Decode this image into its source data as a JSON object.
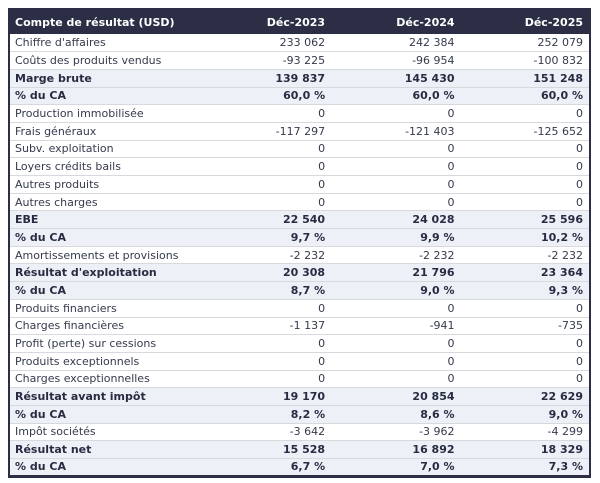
{
  "colors": {
    "header_bg": "#2b2e44",
    "header_text": "#ffffff",
    "subtotal_row_bg": "#edf0f7",
    "grid_line": "#d7d9dc",
    "outer_border": "#2b2e44",
    "body_text": "#353a4d"
  },
  "chart_data": {
    "type": "table",
    "title": "Compte de résultat (USD)",
    "columns": [
      "Déc-2023",
      "Déc-2024",
      "Déc-2025"
    ],
    "rows": [
      {
        "label": "Chiffre d'affaires",
        "values": [
          "233 062",
          "242 384",
          "252 079"
        ],
        "style": "normal"
      },
      {
        "label": "Coûts des produits vendus",
        "values": [
          "-93 225",
          "-96 954",
          "-100 832"
        ],
        "style": "normal"
      },
      {
        "label": "Marge brute",
        "values": [
          "139 837",
          "145 430",
          "151 248"
        ],
        "style": "subtotal"
      },
      {
        "label": "% du CA",
        "values": [
          "60,0 %",
          "60,0 %",
          "60,0 %"
        ],
        "style": "subtotal"
      },
      {
        "label": "Production immobilisée",
        "values": [
          "0",
          "0",
          "0"
        ],
        "style": "normal"
      },
      {
        "label": "Frais généraux",
        "values": [
          "-117 297",
          "-121 403",
          "-125 652"
        ],
        "style": "normal"
      },
      {
        "label": "Subv. exploitation",
        "values": [
          "0",
          "0",
          "0"
        ],
        "style": "normal"
      },
      {
        "label": "Loyers crédits bails",
        "values": [
          "0",
          "0",
          "0"
        ],
        "style": "normal"
      },
      {
        "label": "Autres produits",
        "values": [
          "0",
          "0",
          "0"
        ],
        "style": "normal"
      },
      {
        "label": "Autres charges",
        "values": [
          "0",
          "0",
          "0"
        ],
        "style": "normal"
      },
      {
        "label": "EBE",
        "values": [
          "22 540",
          "24 028",
          "25 596"
        ],
        "style": "subtotal"
      },
      {
        "label": "% du CA",
        "values": [
          "9,7 %",
          "9,9 %",
          "10,2 %"
        ],
        "style": "subtotal"
      },
      {
        "label": "Amortissements et provisions",
        "values": [
          "-2 232",
          "-2 232",
          "-2 232"
        ],
        "style": "normal"
      },
      {
        "label": "Résultat d'exploitation",
        "values": [
          "20 308",
          "21 796",
          "23 364"
        ],
        "style": "subtotal"
      },
      {
        "label": "% du CA",
        "values": [
          "8,7 %",
          "9,0 %",
          "9,3 %"
        ],
        "style": "subtotal"
      },
      {
        "label": "Produits financiers",
        "values": [
          "0",
          "0",
          "0"
        ],
        "style": "normal"
      },
      {
        "label": "Charges financières",
        "values": [
          "-1 137",
          "-941",
          "-735"
        ],
        "style": "normal"
      },
      {
        "label": "Profit (perte) sur cessions",
        "values": [
          "0",
          "0",
          "0"
        ],
        "style": "normal"
      },
      {
        "label": "Produits exceptionnels",
        "values": [
          "0",
          "0",
          "0"
        ],
        "style": "normal"
      },
      {
        "label": "Charges exceptionnelles",
        "values": [
          "0",
          "0",
          "0"
        ],
        "style": "normal"
      },
      {
        "label": "Résultat avant impôt",
        "values": [
          "19 170",
          "20 854",
          "22 629"
        ],
        "style": "subtotal"
      },
      {
        "label": "% du CA",
        "values": [
          "8,2 %",
          "8,6 %",
          "9,0 %"
        ],
        "style": "subtotal"
      },
      {
        "label": "Impôt sociétés",
        "values": [
          "-3 642",
          "-3 962",
          "-4 299"
        ],
        "style": "normal"
      },
      {
        "label": "Résultat net",
        "values": [
          "15 528",
          "16 892",
          "18 329"
        ],
        "style": "subtotal"
      },
      {
        "label": "% du CA",
        "values": [
          "6,7 %",
          "7,0 %",
          "7,3 %"
        ],
        "style": "subtotal"
      }
    ]
  }
}
